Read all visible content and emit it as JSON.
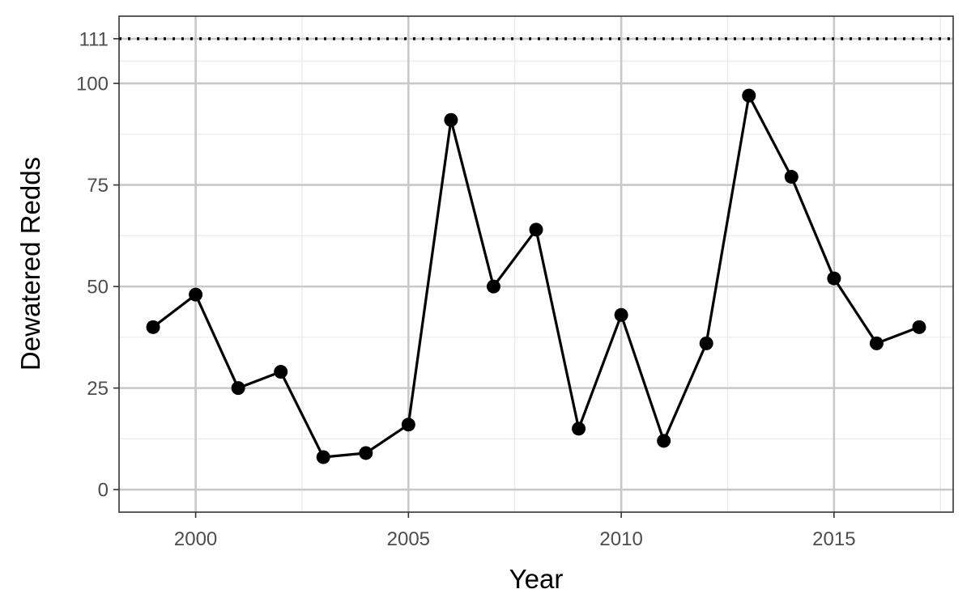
{
  "chart_data": {
    "type": "line",
    "xlabel": "Year",
    "ylabel": "Dewatered Redds",
    "xlim": [
      1998.2,
      2017.8
    ],
    "ylim": [
      -5.55,
      116.55
    ],
    "x_ticks": [
      2000,
      2005,
      2010,
      2015
    ],
    "x_minor_ticks": [
      2002.5,
      2007.5,
      2012.5,
      2017.5
    ],
    "y_ticks": [
      0,
      25,
      50,
      75,
      100,
      111
    ],
    "y_minor_ticks": [
      12.5,
      37.5,
      62.5,
      87.5,
      105.5
    ],
    "grid": true,
    "reference_line": {
      "y": 111,
      "style": "dotted",
      "color": "#000000"
    },
    "series": [
      {
        "color": "#000000",
        "x": [
          1999,
          2000,
          2001,
          2002,
          2003,
          2004,
          2005,
          2006,
          2007,
          2008,
          2009,
          2010,
          2011,
          2012,
          2013,
          2014,
          2015,
          2016,
          2017
        ],
        "y": [
          40,
          48,
          25,
          29,
          8,
          9,
          16,
          91,
          50,
          64,
          15,
          43,
          12,
          36,
          97,
          77,
          52,
          36,
          40
        ]
      }
    ]
  }
}
